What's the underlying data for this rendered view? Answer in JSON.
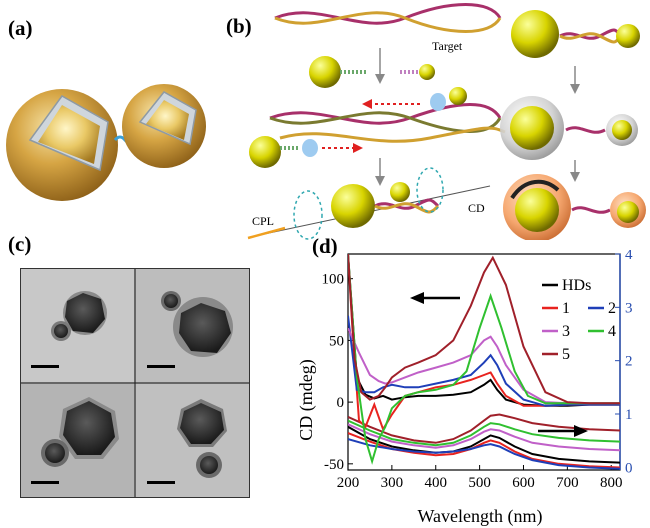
{
  "panels": {
    "a": {
      "label": "(a)"
    },
    "b": {
      "label": "(b)",
      "target_label": "Target",
      "cpl_label": "CPL",
      "cd_label": "CD"
    },
    "c": {
      "label": "(c)"
    },
    "d": {
      "label": "(d)"
    }
  },
  "chart_data": {
    "type": "line",
    "title": "",
    "xlabel": "Wavelength (nm)",
    "ylabel": "CD (mdeg)",
    "y2label": "",
    "xlim": [
      200,
      820
    ],
    "ylim": [
      -55,
      120
    ],
    "y2lim": [
      -0.05,
      4
    ],
    "x_ticks": [
      200,
      300,
      400,
      500,
      600,
      700,
      800
    ],
    "y_ticks": [
      -50,
      0,
      50,
      100
    ],
    "y2_ticks": [
      0,
      1,
      2,
      3,
      4
    ],
    "legend_position": "top-right",
    "legend": [
      "HDs",
      "1",
      "2",
      "3",
      "4",
      "5"
    ],
    "colors": {
      "HDs": "#000000",
      "1": "#e8231f",
      "2": "#1f3fb8",
      "3": "#c060c8",
      "4": "#30c030",
      "5": "#a0202a",
      "axis2": "#2a4fb0"
    },
    "cd_series": [
      {
        "name": "HDs",
        "x": [
          200,
          220,
          240,
          260,
          280,
          300,
          330,
          360,
          400,
          440,
          480,
          510,
          525,
          540,
          560,
          600,
          650,
          700,
          750,
          800,
          820
        ],
        "y": [
          120,
          20,
          6,
          3,
          5,
          2,
          4,
          5,
          5,
          6,
          8,
          14,
          18,
          10,
          2,
          -2,
          -3,
          -3,
          -2,
          -2,
          -2
        ]
      },
      {
        "name": "1",
        "x": [
          200,
          210,
          225,
          240,
          260,
          280,
          300,
          330,
          360,
          400,
          440,
          480,
          510,
          525,
          540,
          560,
          600,
          650,
          700,
          750,
          800,
          820
        ],
        "y": [
          120,
          60,
          -15,
          -20,
          -2,
          -22,
          -10,
          5,
          8,
          12,
          14,
          18,
          22,
          24,
          15,
          5,
          -3,
          -3,
          -2,
          -2,
          -2,
          -2
        ]
      },
      {
        "name": "2",
        "x": [
          200,
          220,
          240,
          260,
          280,
          300,
          330,
          360,
          400,
          440,
          480,
          510,
          525,
          540,
          560,
          600,
          650,
          700,
          750,
          800,
          820
        ],
        "y": [
          70,
          10,
          8,
          8,
          12,
          14,
          12,
          12,
          15,
          18,
          22,
          32,
          38,
          30,
          15,
          2,
          -3,
          -2,
          -2,
          -2,
          -2
        ]
      },
      {
        "name": "3",
        "x": [
          200,
          225,
          250,
          270,
          285,
          300,
          330,
          360,
          400,
          440,
          480,
          510,
          525,
          540,
          560,
          600,
          650,
          700,
          750,
          800,
          820
        ],
        "y": [
          60,
          40,
          22,
          17,
          15,
          16,
          20,
          24,
          28,
          32,
          38,
          50,
          53,
          45,
          30,
          10,
          0,
          -1,
          -1,
          -1,
          -1
        ]
      },
      {
        "name": "4",
        "x": [
          200,
          220,
          240,
          255,
          270,
          285,
          300,
          330,
          360,
          400,
          440,
          470,
          500,
          525,
          550,
          580,
          610,
          650,
          700,
          750,
          800,
          820
        ],
        "y": [
          120,
          20,
          -30,
          -48,
          -30,
          -20,
          -5,
          5,
          8,
          10,
          14,
          25,
          60,
          86,
          60,
          25,
          5,
          -1,
          -1,
          -1,
          -1,
          -1
        ]
      },
      {
        "name": "5",
        "x": [
          200,
          215,
          230,
          250,
          270,
          285,
          300,
          330,
          360,
          400,
          440,
          480,
          510,
          530,
          560,
          600,
          650,
          700,
          750,
          800,
          820
        ],
        "y": [
          120,
          35,
          8,
          2,
          5,
          12,
          20,
          28,
          32,
          38,
          50,
          78,
          105,
          117,
          95,
          45,
          8,
          0,
          -1,
          -1,
          -1
        ]
      }
    ],
    "abs_series": [
      {
        "name": "HDs",
        "x": [
          200,
          250,
          300,
          350,
          400,
          440,
          480,
          510,
          525,
          545,
          580,
          620,
          680,
          750,
          820
        ],
        "y": [
          -20,
          -30,
          -36,
          -39,
          -41,
          -40,
          -36,
          -30,
          -27,
          -29,
          -36,
          -42,
          -46,
          -48,
          -49
        ]
      },
      {
        "name": "1",
        "x": [
          200,
          250,
          300,
          350,
          400,
          440,
          480,
          510,
          525,
          545,
          580,
          620,
          680,
          750,
          820
        ],
        "y": [
          -25,
          -32,
          -38,
          -41,
          -43,
          -42,
          -38,
          -33,
          -31,
          -33,
          -40,
          -46,
          -50,
          -52,
          -53
        ]
      },
      {
        "name": "2",
        "x": [
          200,
          250,
          300,
          350,
          400,
          440,
          480,
          510,
          525,
          545,
          580,
          620,
          680,
          750,
          820
        ],
        "y": [
          -30,
          -35,
          -38,
          -40,
          -41,
          -40,
          -38,
          -35,
          -34,
          -36,
          -42,
          -47,
          -51,
          -53,
          -54
        ]
      },
      {
        "name": "3",
        "x": [
          200,
          250,
          300,
          350,
          400,
          440,
          480,
          510,
          525,
          545,
          580,
          620,
          680,
          750,
          820
        ],
        "y": [
          -18,
          -26,
          -32,
          -35,
          -37,
          -35,
          -30,
          -24,
          -22,
          -23,
          -28,
          -33,
          -36,
          -38,
          -39
        ]
      },
      {
        "name": "4",
        "x": [
          200,
          250,
          300,
          350,
          400,
          440,
          480,
          510,
          525,
          545,
          580,
          620,
          680,
          750,
          820
        ],
        "y": [
          -15,
          -23,
          -30,
          -33,
          -35,
          -33,
          -27,
          -20,
          -17,
          -18,
          -22,
          -26,
          -29,
          -31,
          -32
        ]
      },
      {
        "name": "5",
        "x": [
          200,
          250,
          300,
          350,
          400,
          440,
          480,
          510,
          525,
          545,
          580,
          620,
          680,
          750,
          820
        ],
        "y": [
          -12,
          -20,
          -27,
          -31,
          -33,
          -30,
          -23,
          -15,
          -11,
          -10,
          -13,
          -17,
          -20,
          -22,
          -23
        ]
      }
    ]
  }
}
